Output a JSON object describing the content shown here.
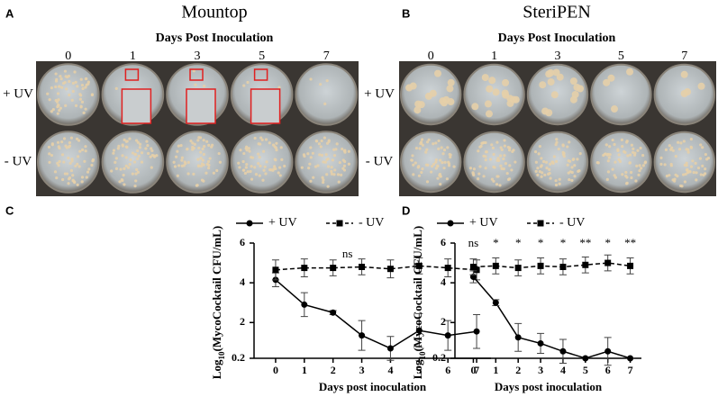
{
  "panels": [
    {
      "label": "A",
      "title": "Mountop",
      "subtitle": "Days Post Inoculation",
      "days": [
        "0",
        "1",
        "3",
        "5",
        "7"
      ],
      "rows": [
        "+ UV",
        "- UV"
      ]
    },
    {
      "label": "B",
      "title": "SteriPEN",
      "subtitle": "Days Post Inoculation",
      "days": [
        "0",
        "1",
        "3",
        "5",
        "7"
      ],
      "rows": [
        "+ UV",
        "- UV"
      ]
    }
  ],
  "chart_data": [
    {
      "type": "line",
      "panel": "C",
      "ylabel_parts": [
        "Log",
        "10",
        "(MycoCocktail CFU/mL)"
      ],
      "xlabel": "Days post inoculation",
      "x": [
        0,
        1,
        2,
        3,
        4,
        5,
        6,
        7
      ],
      "xlim": [
        -0.5,
        7.5
      ],
      "xticks": [
        0,
        1,
        2,
        3,
        4,
        5,
        6,
        7
      ],
      "ylim": [
        0.2,
        6
      ],
      "yticks": [
        0.2,
        2,
        4,
        6
      ],
      "annotation": "ns",
      "series": [
        {
          "name": "+ UV",
          "color": "#000000",
          "marker": "circle",
          "dashed": false,
          "values": [
            4.15,
            2.9,
            2.5,
            1.35,
            0.7,
            1.6,
            1.35,
            1.55
          ],
          "errors": [
            0.35,
            0.6,
            0.1,
            0.75,
            0.6,
            0.85,
            0.75,
            0.85
          ]
        },
        {
          "name": "- UV",
          "color": "#000000",
          "marker": "square",
          "dashed": true,
          "values": [
            4.65,
            4.75,
            4.75,
            4.8,
            4.7,
            4.85,
            4.75,
            4.65
          ],
          "errors": [
            0.5,
            0.45,
            0.4,
            0.4,
            0.45,
            0.4,
            0.45,
            0.5
          ]
        }
      ]
    },
    {
      "type": "line",
      "panel": "D",
      "ylabel_parts": [
        "Log",
        "10",
        "(MycoCocktail CFU/mL)"
      ],
      "xlabel": "Days post inoculation",
      "x": [
        0,
        1,
        2,
        3,
        4,
        5,
        6,
        7
      ],
      "xlim": [
        -0.5,
        7.5
      ],
      "xticks": [
        0,
        1,
        2,
        3,
        4,
        5,
        6,
        7
      ],
      "ylim": [
        0.2,
        6
      ],
      "yticks": [
        0.2,
        2,
        4,
        6
      ],
      "significance": [
        "ns",
        "*",
        "*",
        "*",
        "*",
        "**",
        "*",
        "**"
      ],
      "series": [
        {
          "name": "+ UV",
          "color": "#000000",
          "marker": "circle",
          "dashed": false,
          "values": [
            4.3,
            3.0,
            1.25,
            0.95,
            0.55,
            0.2,
            0.55,
            0.2
          ],
          "errors": [
            0.3,
            0.15,
            0.7,
            0.5,
            0.6,
            0,
            0.7,
            0
          ]
        },
        {
          "name": "- UV",
          "color": "#000000",
          "marker": "square",
          "dashed": true,
          "values": [
            4.8,
            4.85,
            4.75,
            4.85,
            4.8,
            4.9,
            5.0,
            4.85
          ],
          "errors": [
            0.4,
            0.4,
            0.4,
            0.4,
            0.4,
            0.4,
            0.4,
            0.4
          ]
        }
      ]
    }
  ]
}
